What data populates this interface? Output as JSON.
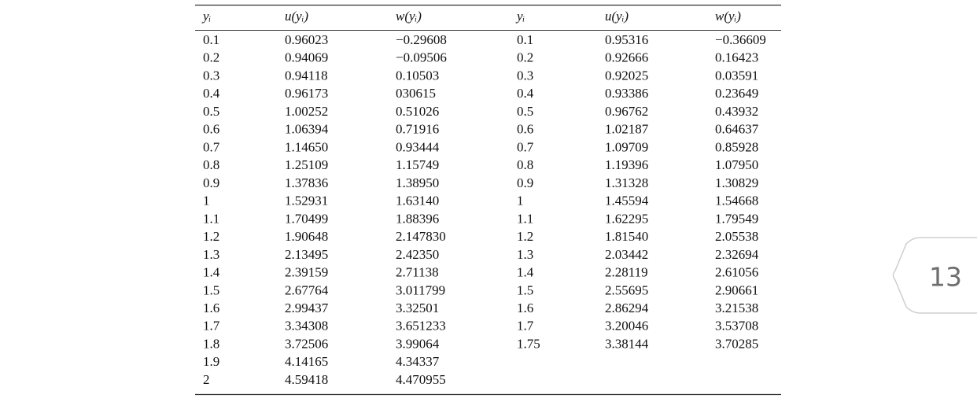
{
  "table": {
    "headers": [
      "yᵢ",
      "u(yᵢ)",
      "w(yᵢ)",
      "yᵢ",
      "u(yᵢ)",
      "w(yᵢ)"
    ],
    "left_rows": [
      [
        "0.1",
        "0.96023",
        "−0.29608"
      ],
      [
        "0.2",
        "0.94069",
        "−0.09506"
      ],
      [
        "0.3",
        "0.94118",
        "0.10503"
      ],
      [
        "0.4",
        "0.96173",
        "030615"
      ],
      [
        "0.5",
        "1.00252",
        "0.51026"
      ],
      [
        "0.6",
        "1.06394",
        "0.71916"
      ],
      [
        "0.7",
        "1.14650",
        "0.93444"
      ],
      [
        "0.8",
        "1.25109",
        "1.15749"
      ],
      [
        "0.9",
        "1.37836",
        "1.38950"
      ],
      [
        "1",
        "1.52931",
        "1.63140"
      ],
      [
        "1.1",
        "1.70499",
        "1.88396"
      ],
      [
        "1.2",
        "1.90648",
        "2.147830"
      ],
      [
        "1.3",
        "2.13495",
        "2.42350"
      ],
      [
        "1.4",
        "2.39159",
        "2.71138"
      ],
      [
        "1.5",
        "2.67764",
        "3.011799"
      ],
      [
        "1.6",
        "2.99437",
        "3.32501"
      ],
      [
        "1.7",
        "3.34308",
        "3.651233"
      ],
      [
        "1.8",
        "3.72506",
        "3.99064"
      ],
      [
        "1.9",
        "4.14165",
        "4.34337"
      ],
      [
        "2",
        "4.59418",
        "4.470955"
      ]
    ],
    "right_rows": [
      [
        "0.1",
        "0.95316",
        "−0.36609"
      ],
      [
        "0.2",
        "0.92666",
        "0.16423"
      ],
      [
        "0.3",
        "0.92025",
        "0.03591"
      ],
      [
        "0.4",
        "0.93386",
        "0.23649"
      ],
      [
        "0.5",
        "0.96762",
        "0.43932"
      ],
      [
        "0.6",
        "1.02187",
        "0.64637"
      ],
      [
        "0.7",
        "1.09709",
        "0.85928"
      ],
      [
        "0.8",
        "1.19396",
        "1.07950"
      ],
      [
        "0.9",
        "1.31328",
        "1.30829"
      ],
      [
        "1",
        "1.45594",
        "1.54668"
      ],
      [
        "1.1",
        "1.62295",
        "1.79549"
      ],
      [
        "1.2",
        "1.81540",
        "2.05538"
      ],
      [
        "1.3",
        "2.03442",
        "2.32694"
      ],
      [
        "1.4",
        "2.28119",
        "2.61056"
      ],
      [
        "1.5",
        "2.55695",
        "2.90661"
      ],
      [
        "1.6",
        "2.86294",
        "3.21538"
      ],
      [
        "1.7",
        "3.20046",
        "3.53708"
      ],
      [
        "1.75",
        "3.38144",
        "3.70285"
      ]
    ]
  },
  "page_number": "13"
}
